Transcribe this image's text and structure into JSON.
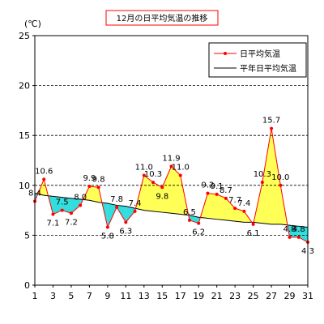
{
  "chart_data": {
    "type": "line",
    "title": "12月の日平均気温の推移",
    "unit_label": "(℃)",
    "ylim": [
      0,
      25
    ],
    "yticks": [
      0,
      5,
      10,
      15,
      20,
      25
    ],
    "xlim": [
      1,
      31
    ],
    "xticks": [
      1,
      3,
      5,
      7,
      9,
      11,
      13,
      15,
      17,
      19,
      21,
      23,
      25,
      27,
      29,
      31
    ],
    "grid": "horizontal-dashed",
    "legend_position": "top-right",
    "colors": {
      "daily": "#ff0000",
      "normal": "#000000",
      "above_fill": "#ffff55",
      "below_fill": "#33dddd",
      "title_border": "#ff0000"
    },
    "series": [
      {
        "name": "日平均気温",
        "x": [
          1,
          2,
          3,
          4,
          5,
          6,
          7,
          8,
          9,
          10,
          11,
          12,
          13,
          14,
          15,
          16,
          17,
          18,
          19,
          20,
          21,
          22,
          23,
          24,
          25,
          26,
          27,
          28,
          29,
          30,
          31
        ],
        "values": [
          8.4,
          10.6,
          7.1,
          7.5,
          7.2,
          8.0,
          9.9,
          9.8,
          5.8,
          7.8,
          6.3,
          7.4,
          11.0,
          10.3,
          9.8,
          11.9,
          11.0,
          6.5,
          6.2,
          9.2,
          9.1,
          8.7,
          7.7,
          7.4,
          6.1,
          10.3,
          15.7,
          10.0,
          4.8,
          4.8,
          4.3
        ]
      },
      {
        "name": "平年日平均気温",
        "x": [
          1,
          2,
          3,
          4,
          5,
          6,
          7,
          8,
          9,
          10,
          11,
          12,
          13,
          14,
          15,
          16,
          17,
          18,
          19,
          20,
          21,
          22,
          23,
          24,
          25,
          26,
          27,
          28,
          29,
          30,
          31
        ],
        "values": [
          9.2,
          9.0,
          8.9,
          8.8,
          8.7,
          8.6,
          8.5,
          8.3,
          8.2,
          8.0,
          7.9,
          7.7,
          7.5,
          7.4,
          7.3,
          7.2,
          7.1,
          7.0,
          6.8,
          6.7,
          6.6,
          6.5,
          6.4,
          6.3,
          6.3,
          6.2,
          6.1,
          6.1,
          6.0,
          5.9,
          5.8
        ]
      }
    ],
    "data_labels": [
      "8.4",
      "10.6",
      "7.1",
      "7.5",
      "7.2",
      "8.0",
      "9.9",
      "9.8",
      "5.8",
      "7.8",
      "6.3",
      "7.4",
      "11.0",
      "10.3",
      "9.8",
      "11.9",
      "11.0",
      "6.5",
      "6.2",
      "9.2",
      "9.1",
      "8.7",
      "7.7",
      "7.4",
      "6.1",
      "10.3",
      "15.7",
      "10.0",
      "4.8",
      "4.8",
      "4.3"
    ]
  }
}
